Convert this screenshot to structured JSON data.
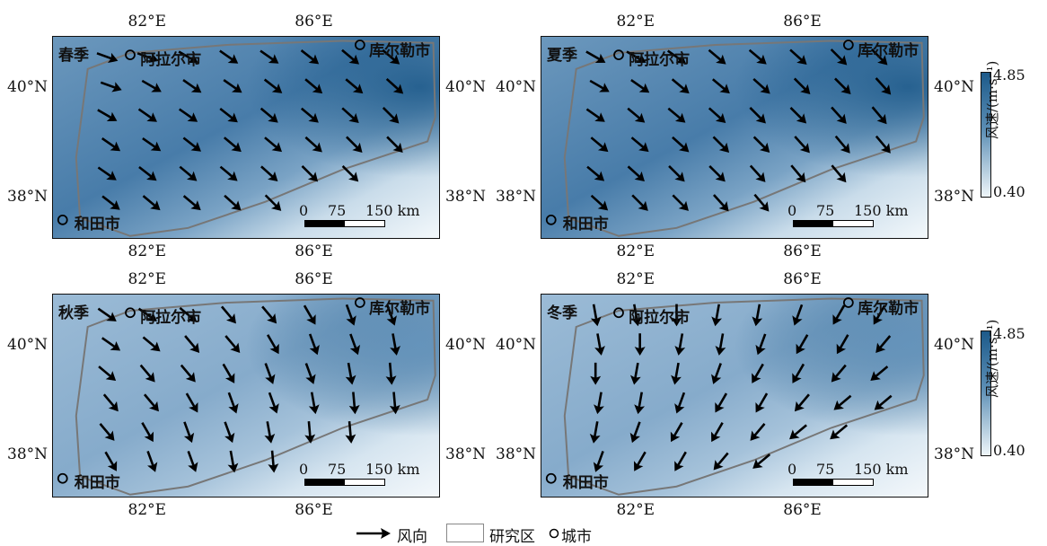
{
  "axis": {
    "lon_ticks": [
      "82°E",
      "86°E"
    ],
    "lat_ticks": [
      "40°N",
      "38°N"
    ]
  },
  "panels": [
    {
      "season": "春季",
      "cities": [
        "阿拉尔市",
        "库尔勒市",
        "和田市"
      ]
    },
    {
      "season": "夏季",
      "cities": [
        "阿拉尔市",
        "库尔勒市",
        "和田市"
      ]
    },
    {
      "season": "秋季",
      "cities": [
        "阿拉尔市",
        "库尔勒市",
        "和田市"
      ]
    },
    {
      "season": "冬季",
      "cities": [
        "阿拉尔市",
        "库尔勒市",
        "和田市"
      ]
    }
  ],
  "scale_bar": {
    "labels": [
      "0",
      "75",
      "150 km"
    ]
  },
  "colorbar": {
    "label": "风速/(m·s⁻¹)",
    "max": "4.85",
    "min": "0.40",
    "color_high": "#1d5a8a",
    "color_low": "#eef5f9"
  },
  "legend": {
    "wind": "风向",
    "study_area": "研究区",
    "city": "城市"
  },
  "colors": {
    "boundary": "#777777",
    "arrow": "#000000"
  }
}
